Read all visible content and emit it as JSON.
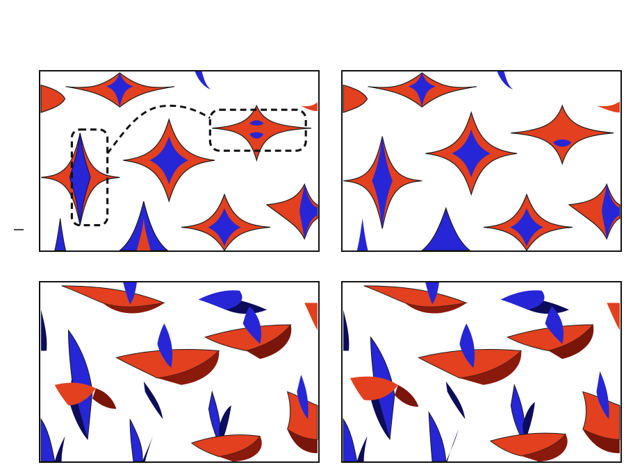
{
  "figure": {
    "header_left": {
      "line1": "",
      "line2": ""
    },
    "header_right": {
      "line1": "",
      "line2": ""
    }
  },
  "colors": {
    "red": "#e2401f",
    "red_dark": "#9a1c0d",
    "blue": "#2626d6",
    "blue_dark": "#0c0c5a",
    "white": "#ffffff",
    "outline": "#1a1a1a"
  },
  "panels": [
    {
      "id": "top-left",
      "view": "flat",
      "highlight": true
    },
    {
      "id": "top-right",
      "view": "flat",
      "highlight": false
    },
    {
      "id": "bottom-left",
      "view": "perspective",
      "highlight": false
    },
    {
      "id": "bottom-right",
      "view": "perspective",
      "highlight": false
    }
  ]
}
